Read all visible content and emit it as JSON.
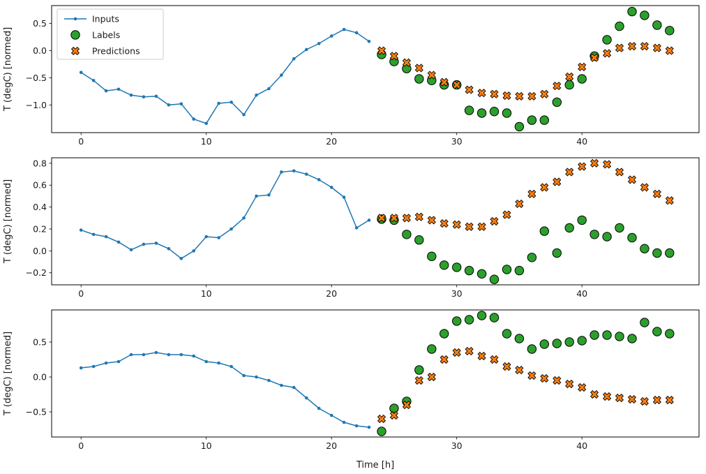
{
  "figure": {
    "ylabel": "T (degC) [normed]",
    "xlabel": "Time [h]",
    "legend_entries": [
      "Inputs",
      "Labels",
      "Predictions"
    ]
  },
  "colors": {
    "inputs": "#1f77b4",
    "labels": "#2ca02c",
    "predictions": "#ff7f0e"
  },
  "chart_data": [
    {
      "type": "line",
      "title": "",
      "xlabel": "",
      "ylabel": "T (degC) [normed]",
      "xlim": [
        -2.35,
        49.35
      ],
      "ylim": [
        -1.51,
        0.83
      ],
      "xticks": [
        0,
        10,
        20,
        30,
        40
      ],
      "yticks": [
        0.5,
        0.0,
        -0.5,
        -1.0
      ],
      "grid": false,
      "legend": true,
      "legend_position": "upper left",
      "series": [
        {
          "name": "Inputs",
          "kind": "line",
          "color": "#1f77b4",
          "x": [
            0,
            1,
            2,
            3,
            4,
            5,
            6,
            7,
            8,
            9,
            10,
            11,
            12,
            13,
            14,
            15,
            16,
            17,
            18,
            19,
            20,
            21,
            22,
            23
          ],
          "y": [
            -0.4,
            -0.55,
            -0.74,
            -0.71,
            -0.82,
            -0.85,
            -0.84,
            -1.0,
            -0.98,
            -1.26,
            -1.34,
            -0.97,
            -0.95,
            -1.18,
            -0.82,
            -0.7,
            -0.45,
            -0.15,
            0.02,
            0.13,
            0.27,
            0.39,
            0.33,
            0.17
          ]
        },
        {
          "name": "Labels",
          "kind": "circle",
          "color": "#2ca02c",
          "x": [
            24,
            25,
            26,
            27,
            28,
            29,
            30,
            31,
            32,
            33,
            34,
            35,
            36,
            37,
            38,
            39,
            40,
            41,
            42,
            43,
            44,
            45,
            46,
            47
          ],
          "y": [
            -0.07,
            -0.2,
            -0.33,
            -0.52,
            -0.55,
            -0.63,
            -0.63,
            -1.1,
            -1.15,
            -1.12,
            -1.15,
            -1.4,
            -1.28,
            -1.28,
            -0.95,
            -0.63,
            -0.52,
            -0.1,
            0.2,
            0.45,
            0.72,
            0.65,
            0.47,
            0.37
          ]
        },
        {
          "name": "Predictions",
          "kind": "x",
          "color": "#ff7f0e",
          "x": [
            24,
            25,
            26,
            27,
            28,
            29,
            30,
            31,
            32,
            33,
            34,
            35,
            36,
            37,
            38,
            39,
            40,
            41,
            42,
            43,
            44,
            45,
            46,
            47
          ],
          "y": [
            0.0,
            -0.1,
            -0.22,
            -0.32,
            -0.45,
            -0.58,
            -0.63,
            -0.72,
            -0.78,
            -0.8,
            -0.83,
            -0.84,
            -0.84,
            -0.8,
            -0.65,
            -0.48,
            -0.3,
            -0.13,
            -0.05,
            0.05,
            0.08,
            0.08,
            0.05,
            0.0
          ]
        }
      ]
    },
    {
      "type": "line",
      "title": "",
      "xlabel": "",
      "ylabel": "T (degC) [normed]",
      "xlim": [
        -2.35,
        49.35
      ],
      "ylim": [
        -0.31,
        0.85
      ],
      "xticks": [
        0,
        10,
        20,
        30,
        40
      ],
      "yticks": [
        0.8,
        0.6,
        0.4,
        0.2,
        0.0,
        -0.2
      ],
      "grid": false,
      "legend": false,
      "series": [
        {
          "name": "Inputs",
          "kind": "line",
          "color": "#1f77b4",
          "x": [
            0,
            1,
            2,
            3,
            4,
            5,
            6,
            7,
            8,
            9,
            10,
            11,
            12,
            13,
            14,
            15,
            16,
            17,
            18,
            19,
            20,
            21,
            22,
            23
          ],
          "y": [
            0.19,
            0.15,
            0.13,
            0.08,
            0.01,
            0.06,
            0.07,
            0.02,
            -0.07,
            0.0,
            0.13,
            0.12,
            0.2,
            0.3,
            0.5,
            0.51,
            0.72,
            0.73,
            0.7,
            0.65,
            0.58,
            0.49,
            0.21,
            0.28
          ]
        },
        {
          "name": "Labels",
          "kind": "circle",
          "color": "#2ca02c",
          "x": [
            24,
            25,
            26,
            27,
            28,
            29,
            30,
            31,
            32,
            33,
            34,
            35,
            36,
            37,
            38,
            39,
            40,
            41,
            42,
            43,
            44,
            45,
            46,
            47
          ],
          "y": [
            0.29,
            0.28,
            0.15,
            0.1,
            -0.05,
            -0.13,
            -0.15,
            -0.18,
            -0.21,
            -0.26,
            -0.17,
            -0.18,
            -0.06,
            0.18,
            -0.02,
            0.21,
            0.28,
            0.15,
            0.13,
            0.21,
            0.12,
            0.02,
            -0.02,
            -0.02
          ]
        },
        {
          "name": "Predictions",
          "kind": "x",
          "color": "#ff7f0e",
          "x": [
            24,
            25,
            26,
            27,
            28,
            29,
            30,
            31,
            32,
            33,
            34,
            35,
            36,
            37,
            38,
            39,
            40,
            41,
            42,
            43,
            44,
            45,
            46,
            47
          ],
          "y": [
            0.3,
            0.3,
            0.3,
            0.31,
            0.28,
            0.25,
            0.24,
            0.22,
            0.22,
            0.27,
            0.33,
            0.43,
            0.52,
            0.58,
            0.63,
            0.72,
            0.77,
            0.8,
            0.79,
            0.72,
            0.65,
            0.58,
            0.52,
            0.46
          ]
        }
      ]
    },
    {
      "type": "line",
      "title": "",
      "xlabel": "Time [h]",
      "ylabel": "T (degC) [normed]",
      "xlim": [
        -2.35,
        49.35
      ],
      "ylim": [
        -0.86,
        0.96
      ],
      "xticks": [
        0,
        10,
        20,
        30,
        40
      ],
      "yticks": [
        0.5,
        0.0,
        -0.5
      ],
      "grid": false,
      "legend": false,
      "series": [
        {
          "name": "Inputs",
          "kind": "line",
          "color": "#1f77b4",
          "x": [
            0,
            1,
            2,
            3,
            4,
            5,
            6,
            7,
            8,
            9,
            10,
            11,
            12,
            13,
            14,
            15,
            16,
            17,
            18,
            19,
            20,
            21,
            22,
            23
          ],
          "y": [
            0.13,
            0.15,
            0.2,
            0.22,
            0.32,
            0.32,
            0.35,
            0.32,
            0.32,
            0.3,
            0.22,
            0.2,
            0.15,
            0.02,
            0.0,
            -0.05,
            -0.12,
            -0.15,
            -0.3,
            -0.45,
            -0.55,
            -0.65,
            -0.7,
            -0.72
          ]
        },
        {
          "name": "Labels",
          "kind": "circle",
          "color": "#2ca02c",
          "x": [
            24,
            25,
            26,
            27,
            28,
            29,
            30,
            31,
            32,
            33,
            34,
            35,
            36,
            37,
            38,
            39,
            40,
            41,
            42,
            43,
            44,
            45,
            46,
            47
          ],
          "y": [
            -0.78,
            -0.45,
            -0.35,
            0.1,
            0.4,
            0.62,
            0.8,
            0.82,
            0.88,
            0.85,
            0.62,
            0.55,
            0.4,
            0.47,
            0.48,
            0.5,
            0.52,
            0.6,
            0.6,
            0.58,
            0.55,
            0.78,
            0.65,
            0.62
          ]
        },
        {
          "name": "Predictions",
          "kind": "x",
          "color": "#ff7f0e",
          "x": [
            24,
            25,
            26,
            27,
            28,
            29,
            30,
            31,
            32,
            33,
            34,
            35,
            36,
            37,
            38,
            39,
            40,
            41,
            42,
            43,
            44,
            45,
            46,
            47
          ],
          "y": [
            -0.6,
            -0.55,
            -0.4,
            -0.05,
            0.0,
            0.25,
            0.35,
            0.37,
            0.3,
            0.25,
            0.15,
            0.1,
            0.02,
            -0.02,
            -0.05,
            -0.1,
            -0.15,
            -0.25,
            -0.28,
            -0.3,
            -0.32,
            -0.35,
            -0.33,
            -0.33
          ]
        }
      ]
    }
  ]
}
